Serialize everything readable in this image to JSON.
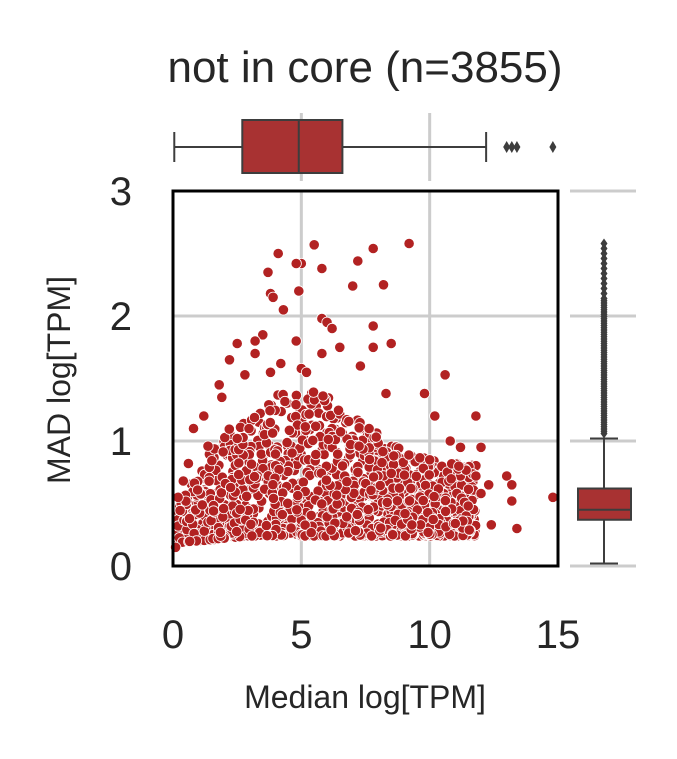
{
  "chart_data": {
    "type": "scatter",
    "title": "not in core (n=3855)",
    "xlabel": "Median log[TPM]",
    "ylabel": "MAD log[TPM]",
    "xlim": [
      0,
      15
    ],
    "ylim": [
      0,
      3
    ],
    "xticks": [
      "0",
      "5",
      "10",
      "15"
    ],
    "yticks": [
      "0",
      "1",
      "2",
      "3"
    ],
    "grid": true,
    "color": "#b22222",
    "box_color": "#a83232",
    "n": 3855,
    "marginal_x_box": {
      "q1": 2.7,
      "median": 4.9,
      "q3": 6.6,
      "whisker_low": 0.05,
      "whisker_high": 12.2,
      "outliers": [
        13.0,
        13.2,
        13.4,
        14.8
      ]
    },
    "marginal_y_box": {
      "q1": 0.37,
      "median": 0.45,
      "q3": 0.62,
      "whisker_low": 0.02,
      "whisker_high": 1.02
    },
    "points": [
      [
        4.1,
        2.5
      ],
      [
        5.5,
        2.57
      ],
      [
        9.2,
        2.58
      ],
      [
        7.8,
        2.54
      ],
      [
        7.2,
        2.44
      ],
      [
        5.0,
        2.42
      ],
      [
        4.8,
        2.42
      ],
      [
        5.8,
        2.38
      ],
      [
        3.7,
        2.35
      ],
      [
        8.2,
        2.25
      ],
      [
        7.0,
        2.24
      ],
      [
        4.9,
        2.2
      ],
      [
        3.8,
        2.18
      ],
      [
        3.9,
        2.15
      ],
      [
        4.3,
        2.05
      ],
      [
        5.8,
        1.98
      ],
      [
        6.0,
        1.95
      ],
      [
        6.2,
        1.9
      ],
      [
        7.8,
        1.92
      ],
      [
        3.5,
        1.85
      ],
      [
        3.2,
        1.8
      ],
      [
        2.5,
        1.78
      ],
      [
        4.8,
        1.8
      ],
      [
        8.5,
        1.78
      ],
      [
        7.8,
        1.75
      ],
      [
        6.5,
        1.75
      ],
      [
        5.8,
        1.7
      ],
      [
        3.2,
        1.7
      ],
      [
        2.2,
        1.65
      ],
      [
        4.2,
        1.62
      ],
      [
        7.3,
        1.6
      ],
      [
        5.0,
        1.58
      ],
      [
        3.8,
        1.55
      ],
      [
        2.8,
        1.53
      ],
      [
        10.6,
        1.53
      ],
      [
        5.2,
        1.55
      ],
      [
        1.8,
        1.45
      ],
      [
        1.9,
        1.35
      ],
      [
        9.8,
        1.38
      ],
      [
        8.3,
        1.38
      ],
      [
        1.2,
        1.2
      ],
      [
        11.8,
        1.2
      ],
      [
        10.2,
        1.2
      ],
      [
        0.8,
        1.1
      ],
      [
        2.5,
        1.02
      ],
      [
        10.8,
        1.0
      ],
      [
        12.0,
        0.95
      ],
      [
        11.2,
        0.95
      ],
      [
        10.0,
        0.85
      ],
      [
        11.8,
        0.72
      ],
      [
        13.0,
        0.72
      ],
      [
        12.3,
        0.65
      ],
      [
        13.2,
        0.65
      ],
      [
        12.0,
        0.58
      ],
      [
        13.2,
        0.52
      ],
      [
        14.8,
        0.55
      ],
      [
        13.4,
        0.3
      ],
      [
        0.1,
        0.15
      ],
      [
        0.2,
        0.55
      ],
      [
        0.4,
        0.68
      ],
      [
        0.6,
        0.82
      ],
      [
        11.5,
        0.48
      ],
      [
        12.4,
        0.33
      ],
      [
        11.0,
        0.34
      ]
    ]
  }
}
